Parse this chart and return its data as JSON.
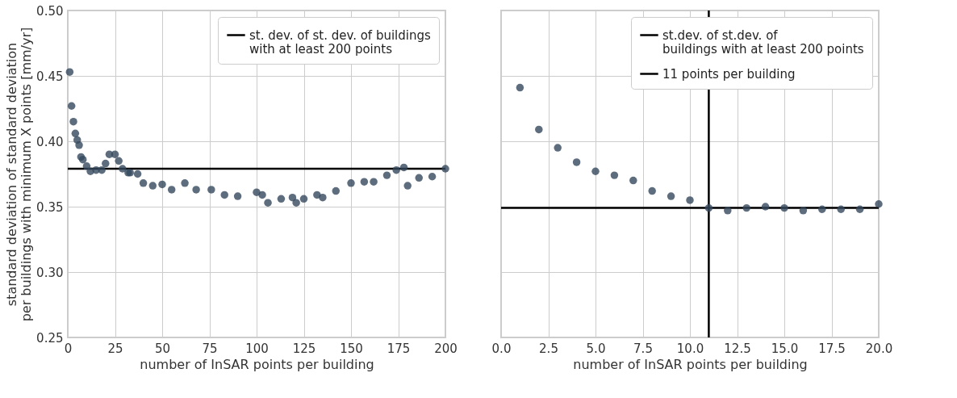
{
  "chart_data": [
    {
      "type": "scatter",
      "xlabel": "number of InSAR points per building",
      "ylabel": "standard deviation of  standard deviation\nper buildings with minimum X points [mm/yr]",
      "xlim": [
        0,
        200
      ],
      "xticks": [
        0,
        25,
        50,
        75,
        100,
        125,
        150,
        175,
        200
      ],
      "ylim": [
        0.25,
        0.5
      ],
      "yticks": [
        0.25,
        {
          "value": 0.3,
          "label": "0.30"
        },
        0.35,
        {
          "value": 0.4,
          "label": "0.40"
        },
        0.45,
        {
          "value": 0.5,
          "label": "0.50"
        }
      ],
      "grid": true,
      "legend": "top right",
      "marker": "circle",
      "series": [
        {
          "color": "#34495e",
          "x": [
            1,
            2,
            3,
            4,
            5,
            6,
            7,
            8,
            10,
            12,
            15,
            18,
            20,
            22,
            25,
            27,
            29,
            32,
            33,
            37,
            40,
            45,
            50,
            55,
            62,
            68,
            76,
            83,
            90,
            100,
            103,
            106,
            113,
            119,
            121,
            125,
            132,
            135,
            142,
            150,
            157,
            162,
            169,
            174,
            178,
            180,
            186,
            193,
            200
          ],
          "values": [
            0.453,
            0.427,
            0.415,
            0.406,
            0.401,
            0.397,
            0.388,
            0.386,
            0.381,
            0.377,
            0.378,
            0.378,
            0.383,
            0.39,
            0.39,
            0.385,
            0.379,
            0.376,
            0.376,
            0.375,
            0.368,
            0.366,
            0.367,
            0.363,
            0.368,
            0.363,
            0.363,
            0.359,
            0.358,
            0.361,
            0.359,
            0.353,
            0.356,
            0.357,
            0.353,
            0.356,
            0.359,
            0.357,
            0.362,
            0.368,
            0.369,
            0.369,
            0.374,
            0.378,
            0.38,
            0.366,
            0.372,
            0.373,
            0.379
          ]
        }
      ],
      "ref_lines": [
        {
          "axis": "y",
          "value": 0.379,
          "label": "st. dev. of st. dev. of buildings\nwith at least 200 points",
          "color": "#000000"
        }
      ]
    },
    {
      "type": "scatter",
      "xlabel": "number of InSAR points per building",
      "xlim": [
        0,
        20
      ],
      "xticks": [
        {
          "value": 0,
          "label": "0.0"
        },
        {
          "value": 2.5,
          "label": "2.5"
        },
        {
          "value": 5,
          "label": "5.0"
        },
        {
          "value": 7.5,
          "label": "7.5"
        },
        {
          "value": 10,
          "label": "10.0"
        },
        {
          "value": 12.5,
          "label": "12.5"
        },
        {
          "value": 15,
          "label": "15.0"
        },
        {
          "value": 17.5,
          "label": "17.5"
        },
        {
          "value": 20,
          "label": "20.0"
        }
      ],
      "ylim": [
        0.25,
        0.5
      ],
      "yticks": [
        {
          "value": 0.25,
          "label": null
        },
        {
          "value": 0.3,
          "label": null
        },
        {
          "value": 0.35,
          "label": null
        },
        {
          "value": 0.4,
          "label": null
        },
        {
          "value": 0.45,
          "label": null
        },
        {
          "value": 0.5,
          "label": null
        }
      ],
      "tick_labels": "x",
      "grid": true,
      "legend": "top right",
      "marker": "circle",
      "series": [
        {
          "color": "#34495e",
          "x": [
            1,
            2,
            3,
            4,
            5,
            6,
            7,
            8,
            9,
            10,
            11,
            12,
            13,
            14,
            15,
            16,
            17,
            18,
            19,
            20
          ],
          "values": [
            0.441,
            0.409,
            0.395,
            0.384,
            0.377,
            0.374,
            0.37,
            0.362,
            0.358,
            0.355,
            0.349,
            0.347,
            0.349,
            0.35,
            0.349,
            0.347,
            0.348,
            0.348,
            0.348,
            0.352
          ]
        }
      ],
      "ref_lines": [
        {
          "axis": "y",
          "value": 0.349,
          "label": "st.dev. of st.dev. of\nbuildings with at least 200 points",
          "color": "#000000"
        },
        {
          "axis": "x",
          "value": 11,
          "label": "11 points per building",
          "color": "#000000"
        }
      ]
    }
  ]
}
